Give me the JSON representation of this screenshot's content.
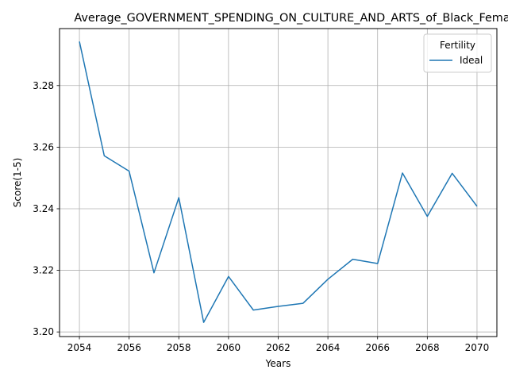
{
  "chart_data": {
    "type": "line",
    "title": "Average_GOVERNMENT_SPENDING_ON_CULTURE_AND_ARTS_of_Black_Fema",
    "xlabel": "Years",
    "ylabel": "Score(1-5)",
    "xlim": [
      2053.2,
      2070.8
    ],
    "ylim": [
      3.1985,
      3.2985
    ],
    "xticks": [
      2054,
      2056,
      2058,
      2060,
      2062,
      2064,
      2066,
      2068,
      2070
    ],
    "yticks": [
      3.2,
      3.22,
      3.24,
      3.26,
      3.28
    ],
    "ytick_labels": [
      "3.20",
      "3.22",
      "3.24",
      "3.26",
      "3.28"
    ],
    "grid": true,
    "legend": {
      "title": "Fertility",
      "placement": "top-right"
    },
    "x": [
      2054,
      2055,
      2056,
      2057,
      2058,
      2059,
      2060,
      2061,
      2062,
      2063,
      2064,
      2065,
      2066,
      2067,
      2068,
      2069,
      2070
    ],
    "series": [
      {
        "name": "Ideal",
        "color": "#1f77b4",
        "values": [
          3.2943,
          3.2572,
          3.2522,
          3.2192,
          3.2436,
          3.2031,
          3.218,
          3.2071,
          3.2083,
          3.2093,
          3.2171,
          3.2236,
          3.2222,
          3.2516,
          3.2375,
          3.2515,
          3.2408
        ]
      }
    ]
  }
}
